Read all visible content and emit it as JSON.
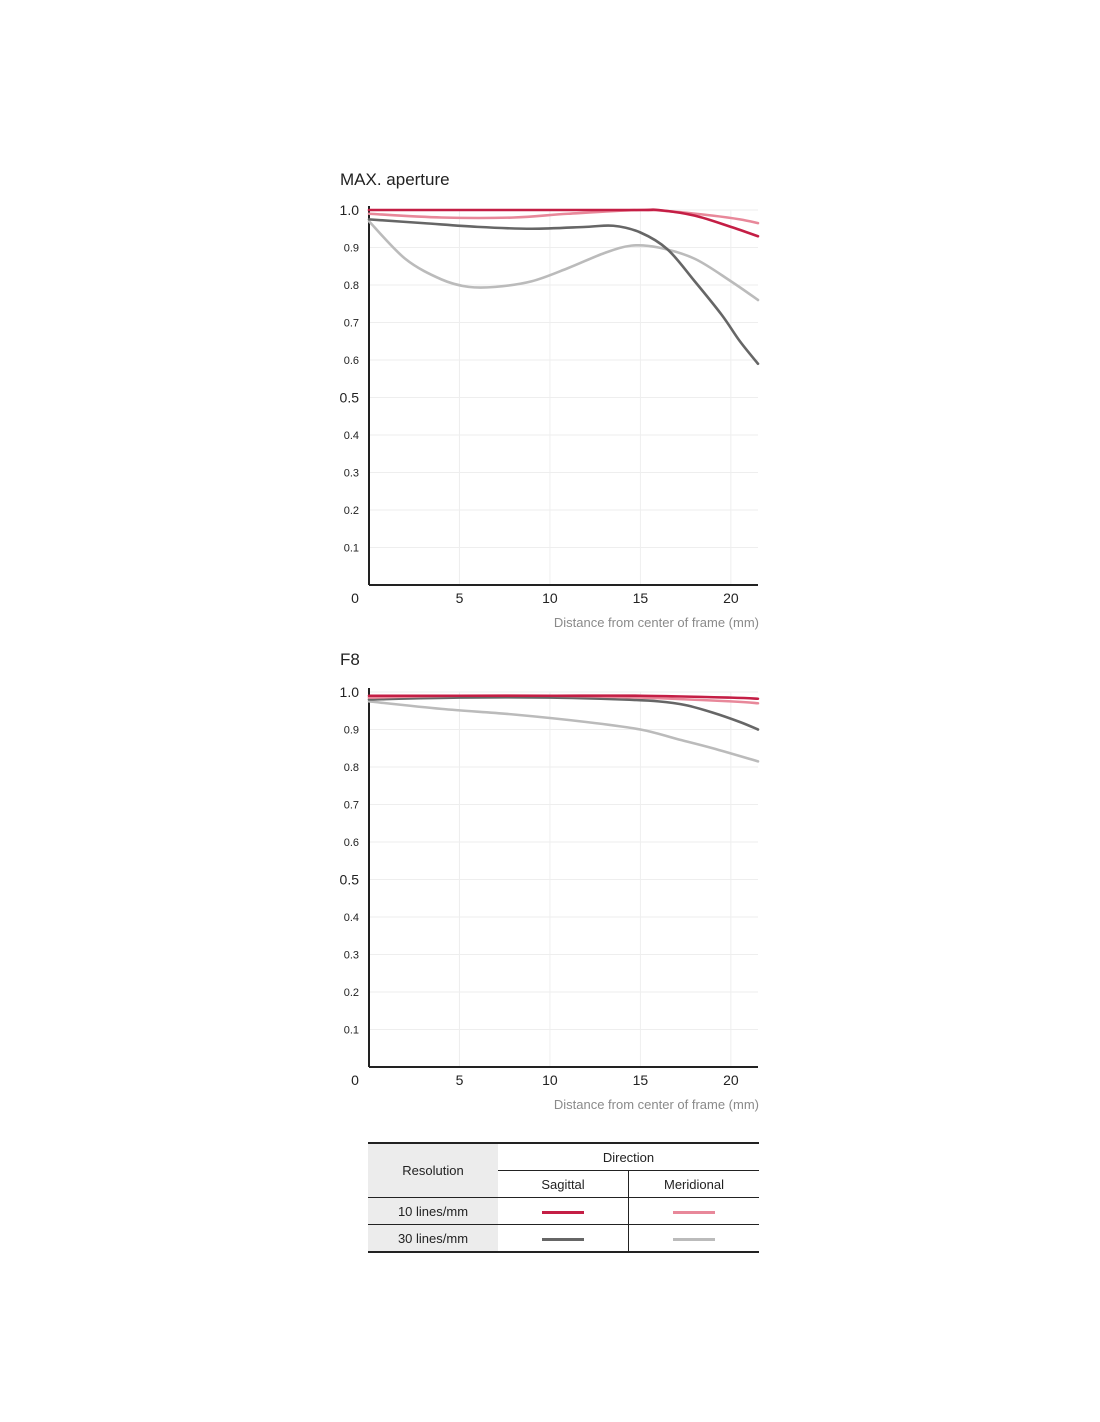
{
  "colors": {
    "sagittal_10": "#c41e45",
    "meridional_10": "#e8889a",
    "sagittal_30": "#666666",
    "meridional_30": "#bbbbbb",
    "grid": "#eeeeee",
    "axis": "#222222"
  },
  "axis": {
    "xlabel": "Distance from center of frame (mm)",
    "x_ticks": [
      "0",
      "5",
      "10",
      "15",
      "20"
    ],
    "y_ticks_major": [
      "1.0",
      "0.5"
    ],
    "y_ticks_minor": [
      "0.9",
      "0.8",
      "0.7",
      "0.6",
      "0.4",
      "0.3",
      "0.2",
      "0.1"
    ]
  },
  "chart_data": [
    {
      "type": "line",
      "title": "MAX. aperture",
      "xlabel": "Distance from center of frame (mm)",
      "xlim": [
        0,
        21.5
      ],
      "ylim": [
        0,
        1.0
      ],
      "grid": true,
      "series": [
        {
          "key": "sagittal_10",
          "x": [
            0,
            5,
            10,
            15,
            16,
            18,
            20,
            21.5
          ],
          "y": [
            1.0,
            1.0,
            1.0,
            1.0,
            1.0,
            0.985,
            0.955,
            0.93
          ]
        },
        {
          "key": "meridional_10",
          "x": [
            0,
            4,
            8,
            11,
            15,
            17,
            19,
            20.5,
            21.5
          ],
          "y": [
            0.99,
            0.98,
            0.98,
            0.99,
            1.0,
            0.995,
            0.985,
            0.975,
            0.965
          ]
        },
        {
          "key": "sagittal_30",
          "x": [
            0,
            3,
            6,
            9,
            12,
            13.5,
            15,
            16.5,
            18,
            19.5,
            20.5,
            21.5
          ],
          "y": [
            0.975,
            0.965,
            0.955,
            0.95,
            0.955,
            0.958,
            0.94,
            0.895,
            0.81,
            0.72,
            0.65,
            0.59
          ]
        },
        {
          "key": "meridional_30",
          "x": [
            0,
            2,
            4,
            5.5,
            7,
            9,
            11,
            13,
            14.5,
            16,
            18,
            20,
            21.5
          ],
          "y": [
            0.97,
            0.87,
            0.815,
            0.795,
            0.795,
            0.81,
            0.845,
            0.885,
            0.905,
            0.9,
            0.87,
            0.81,
            0.76
          ]
        }
      ]
    },
    {
      "type": "line",
      "title": "F8",
      "xlabel": "Distance from center of frame (mm)",
      "xlim": [
        0,
        21.5
      ],
      "ylim": [
        0,
        1.0
      ],
      "grid": true,
      "series": [
        {
          "key": "sagittal_10",
          "x": [
            0,
            5,
            10,
            15,
            20,
            21.5
          ],
          "y": [
            0.99,
            0.99,
            0.99,
            0.99,
            0.985,
            0.982
          ]
        },
        {
          "key": "meridional_10",
          "x": [
            0,
            5,
            10,
            15,
            20,
            21.5
          ],
          "y": [
            0.985,
            0.99,
            0.99,
            0.985,
            0.975,
            0.97
          ]
        },
        {
          "key": "sagittal_30",
          "x": [
            0,
            5,
            10,
            14,
            16,
            17.5,
            19,
            20.5,
            21.5
          ],
          "y": [
            0.98,
            0.985,
            0.985,
            0.98,
            0.975,
            0.965,
            0.945,
            0.92,
            0.9
          ]
        },
        {
          "key": "meridional_30",
          "x": [
            0,
            4,
            8,
            12,
            15,
            17,
            19,
            21.5
          ],
          "y": [
            0.975,
            0.955,
            0.94,
            0.92,
            0.9,
            0.875,
            0.85,
            0.815
          ]
        }
      ]
    }
  ],
  "legend": {
    "resolution_header": "Resolution",
    "direction_header": "Direction",
    "sagittal_header": "Sagittal",
    "meridional_header": "Meridional",
    "row1_label": "10 lines/mm",
    "row2_label": "30 lines/mm"
  }
}
